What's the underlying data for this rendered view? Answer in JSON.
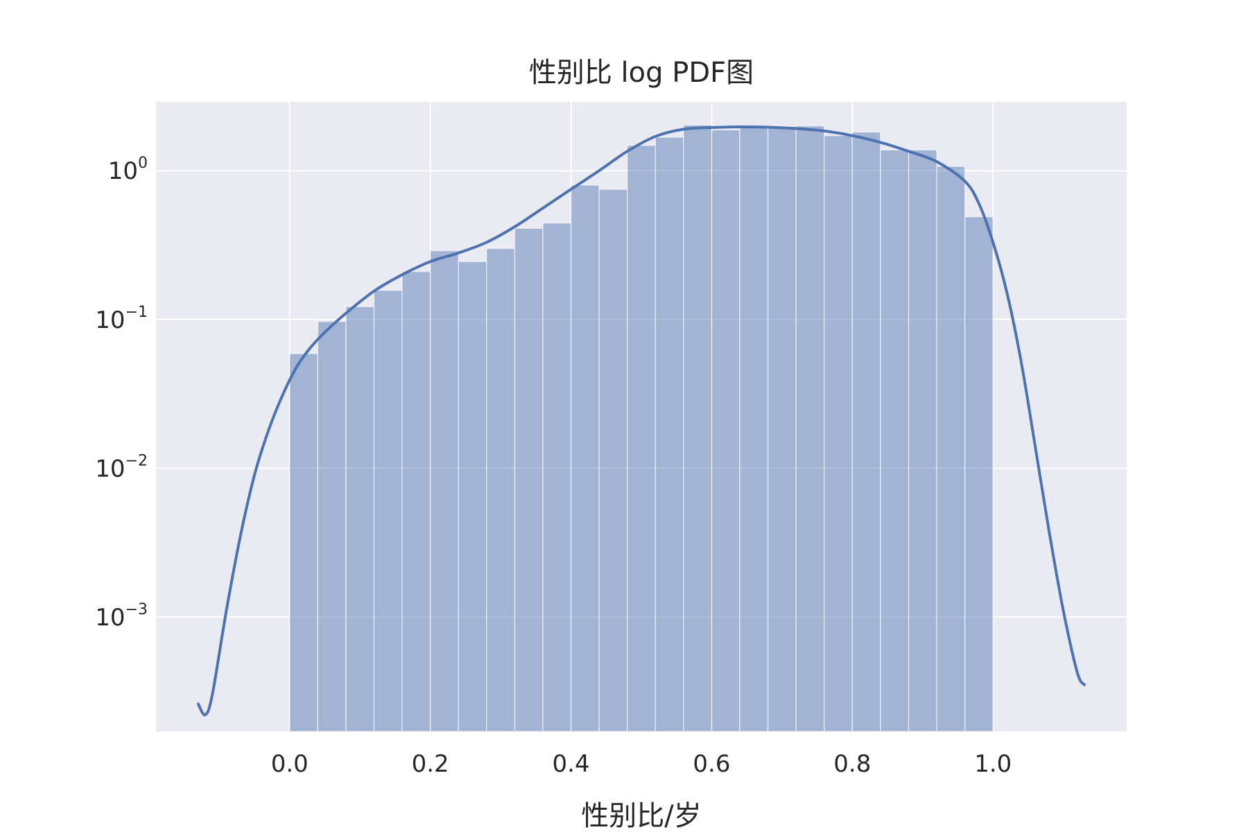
{
  "chart_data": {
    "type": "bar",
    "title": "性别比 log PDF图",
    "xlabel": "性别比/岁",
    "ylabel": "",
    "xscale": "linear",
    "yscale": "log",
    "xlim": [
      -0.19,
      1.19
    ],
    "ylim": [
      0.00017,
      2.9
    ],
    "grid": true,
    "x_ticks": [
      {
        "value": 0.0,
        "label": "0.0"
      },
      {
        "value": 0.2,
        "label": "0.2"
      },
      {
        "value": 0.4,
        "label": "0.4"
      },
      {
        "value": 0.6,
        "label": "0.6"
      },
      {
        "value": 0.8,
        "label": "0.8"
      },
      {
        "value": 1.0,
        "label": "1.0"
      }
    ],
    "y_ticks": [
      {
        "value": 1,
        "base": "10",
        "exp": "0"
      },
      {
        "value": 0.1,
        "base": "10",
        "exp": "−1"
      },
      {
        "value": 0.01,
        "base": "10",
        "exp": "−2"
      },
      {
        "value": 0.001,
        "base": "10",
        "exp": "−3"
      }
    ],
    "histogram": {
      "bin_start": 0.0,
      "bin_width": 0.04,
      "values": [
        0.059,
        0.097,
        0.122,
        0.157,
        0.21,
        0.29,
        0.245,
        0.3,
        0.41,
        0.445,
        0.8,
        0.75,
        1.48,
        1.68,
        2.03,
        1.88,
        1.98,
        1.98,
        2.0,
        1.72,
        1.82,
        1.38,
        1.38,
        1.07,
        0.49
      ],
      "color": "#4c72b0",
      "opacity": 0.45
    },
    "kde": {
      "name": "",
      "color": "#4c72b0",
      "x": [
        -0.13,
        -0.12,
        -0.11,
        -0.09,
        -0.07,
        -0.05,
        -0.03,
        -0.01,
        0.01,
        0.03,
        0.05,
        0.08,
        0.12,
        0.16,
        0.2,
        0.24,
        0.28,
        0.32,
        0.36,
        0.4,
        0.44,
        0.48,
        0.52,
        0.56,
        0.6,
        0.64,
        0.68,
        0.72,
        0.76,
        0.8,
        0.84,
        0.88,
        0.92,
        0.96,
        0.98,
        1.0,
        1.02,
        1.04,
        1.06,
        1.08,
        1.1,
        1.12,
        1.13
      ],
      "y": [
        0.00026,
        0.00022,
        0.0003,
        0.0011,
        0.0035,
        0.009,
        0.018,
        0.031,
        0.048,
        0.065,
        0.082,
        0.11,
        0.155,
        0.2,
        0.245,
        0.28,
        0.33,
        0.42,
        0.56,
        0.75,
        1.0,
        1.35,
        1.7,
        1.9,
        1.95,
        1.97,
        1.96,
        1.92,
        1.85,
        1.72,
        1.55,
        1.35,
        1.15,
        0.85,
        0.6,
        0.33,
        0.15,
        0.052,
        0.014,
        0.0037,
        0.0011,
        0.00042,
        0.00035
      ]
    },
    "background_color": "#eaeaf2",
    "grid_color": "#ffffff"
  }
}
